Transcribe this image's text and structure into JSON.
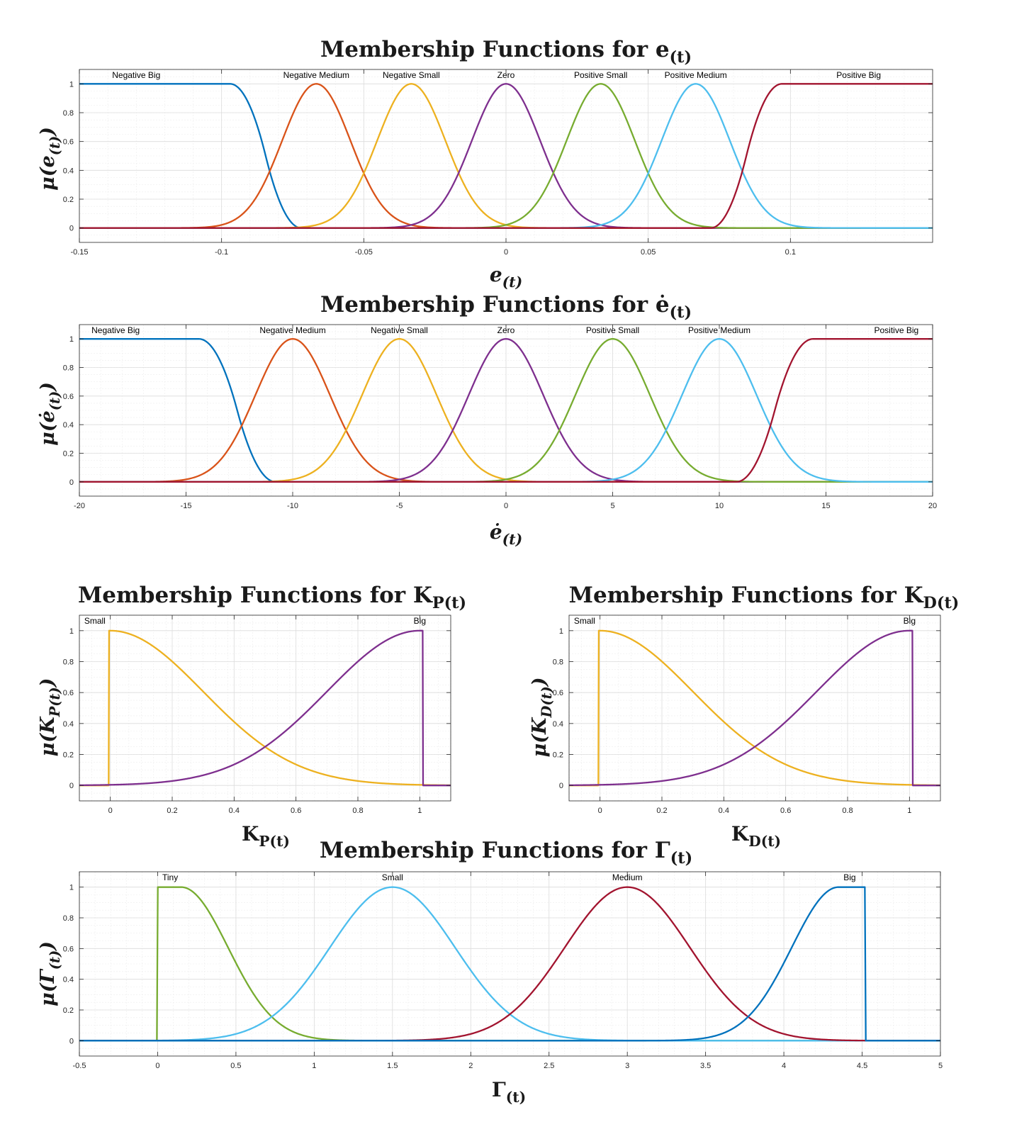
{
  "chart_data": [
    {
      "type": "line",
      "title": "Membership Functions for e(t)",
      "xlabel": "e(t)",
      "ylabel": "μ(e(t))",
      "xlim": [
        -0.15,
        0.15
      ],
      "ylim": [
        -0.1,
        1.1
      ],
      "xticks": [
        -0.15,
        -0.1,
        -0.05,
        0,
        0.05,
        0.1
      ],
      "xtick_labels": [
        "-0.15",
        "-0.1",
        "-0.05",
        "0",
        "0.05",
        "0.1"
      ],
      "yticks": [
        0,
        0.2,
        0.4,
        0.6,
        0.8,
        1
      ],
      "ytick_labels": [
        "0",
        "0.2",
        "0.4",
        "0.6",
        "0.8",
        "1"
      ],
      "grid": true,
      "series": [
        {
          "name": "Negative Big",
          "color": "#0072BD",
          "shape": "zmf",
          "params": [
            -0.097,
            -0.072
          ],
          "label_x": -0.13
        },
        {
          "name": "Negative Medium",
          "color": "#D95319",
          "shape": "gauss",
          "params": [
            -0.0667,
            0.012
          ],
          "label_x": -0.0667
        },
        {
          "name": "Negative Small",
          "color": "#EDB120",
          "shape": "gauss",
          "params": [
            -0.0333,
            0.012
          ],
          "label_x": -0.0333
        },
        {
          "name": "Zero",
          "color": "#7E2F8E",
          "shape": "gauss",
          "params": [
            0,
            0.012
          ],
          "label_x": 0
        },
        {
          "name": "Positive Small",
          "color": "#77AC30",
          "shape": "gauss",
          "params": [
            0.0333,
            0.012
          ],
          "label_x": 0.0333
        },
        {
          "name": "Positive Medium",
          "color": "#4DBEEE",
          "shape": "gauss",
          "params": [
            0.0667,
            0.012
          ],
          "label_x": 0.0667
        },
        {
          "name": "Positive Big",
          "color": "#A2142F",
          "shape": "smf",
          "params": [
            0.072,
            0.097
          ],
          "label_x": 0.124
        }
      ]
    },
    {
      "type": "line",
      "title": "Membership Functions for ė(t)",
      "xlabel": "ė(t)",
      "ylabel": "μ(ė(t))",
      "xlim": [
        -20,
        20
      ],
      "ylim": [
        -0.1,
        1.1
      ],
      "xticks": [
        -20,
        -15,
        -10,
        -5,
        0,
        5,
        10,
        15,
        20
      ],
      "xtick_labels": [
        "-20",
        "-15",
        "-10",
        "-5",
        "0",
        "5",
        "10",
        "15",
        "20"
      ],
      "yticks": [
        0,
        0.2,
        0.4,
        0.6,
        0.8,
        1
      ],
      "ytick_labels": [
        "0",
        "0.2",
        "0.4",
        "0.6",
        "0.8",
        "1"
      ],
      "grid": true,
      "series": [
        {
          "name": "Negative Big",
          "color": "#0072BD",
          "shape": "zmf",
          "params": [
            -14.4,
            -10.8
          ],
          "label_x": -18.3
        },
        {
          "name": "Negative Medium",
          "color": "#D95319",
          "shape": "gauss",
          "params": [
            -10,
            1.75
          ],
          "label_x": -10
        },
        {
          "name": "Negative Small",
          "color": "#EDB120",
          "shape": "gauss",
          "params": [
            -5,
            1.75
          ],
          "label_x": -5
        },
        {
          "name": "Zero",
          "color": "#7E2F8E",
          "shape": "gauss",
          "params": [
            0,
            1.75
          ],
          "label_x": 0
        },
        {
          "name": "Positive Small",
          "color": "#77AC30",
          "shape": "gauss",
          "params": [
            5,
            1.75
          ],
          "label_x": 5
        },
        {
          "name": "Positive Medium",
          "color": "#4DBEEE",
          "shape": "gauss",
          "params": [
            10,
            1.75
          ],
          "label_x": 10
        },
        {
          "name": "Positive Big",
          "color": "#A2142F",
          "shape": "smf",
          "params": [
            10.8,
            14.4
          ],
          "label_x": 18.3
        }
      ]
    },
    {
      "type": "line",
      "title": "Membership Functions for KP(t)",
      "xlabel": "KP(t)",
      "ylabel": "μ(KP(t))",
      "xlim": [
        -0.1,
        1.1
      ],
      "ylim": [
        -0.1,
        1.1
      ],
      "xticks": [
        0,
        0.2,
        0.4,
        0.6,
        0.8,
        1
      ],
      "xtick_labels": [
        "0",
        "0.2",
        "0.4",
        "0.6",
        "0.8",
        "1"
      ],
      "yticks": [
        0,
        0.2,
        0.4,
        0.6,
        0.8,
        1
      ],
      "ytick_labels": [
        "0",
        "0.2",
        "0.4",
        "0.6",
        "0.8",
        "1"
      ],
      "grid": true,
      "series": [
        {
          "name": "Small",
          "color": "#EDB120",
          "shape": "gauss_right",
          "params": [
            0,
            0.3,
            -0.005
          ],
          "label_x": -0.05
        },
        {
          "name": "Big",
          "color": "#7E2F8E",
          "shape": "gauss_left",
          "params": [
            1,
            0.3,
            1.01
          ],
          "label_x": 1.0
        }
      ]
    },
    {
      "type": "line",
      "title": "Membership Functions for KD(t)",
      "xlabel": "KD(t)",
      "ylabel": "μ(KD(t))",
      "xlim": [
        -0.1,
        1.1
      ],
      "ylim": [
        -0.1,
        1.1
      ],
      "xticks": [
        0,
        0.2,
        0.4,
        0.6,
        0.8,
        1
      ],
      "xtick_labels": [
        "0",
        "0.2",
        "0.4",
        "0.6",
        "0.8",
        "1"
      ],
      "yticks": [
        0,
        0.2,
        0.4,
        0.6,
        0.8,
        1
      ],
      "ytick_labels": [
        "0",
        "0.2",
        "0.4",
        "0.6",
        "0.8",
        "1"
      ],
      "grid": true,
      "series": [
        {
          "name": "Small",
          "color": "#EDB120",
          "shape": "gauss_right",
          "params": [
            0,
            0.3,
            -0.005
          ],
          "label_x": -0.05
        },
        {
          "name": "Big",
          "color": "#7E2F8E",
          "shape": "gauss_left",
          "params": [
            1,
            0.3,
            1.01
          ],
          "label_x": 1.0
        }
      ]
    },
    {
      "type": "line",
      "title": "Membership Functions for Γ(t)",
      "xlabel": "Γ(t)",
      "ylabel": "μ(Γ(t))",
      "xlim": [
        -0.5,
        5
      ],
      "ylim": [
        -0.1,
        1.1
      ],
      "xticks": [
        -0.5,
        0,
        0.5,
        1,
        1.5,
        2,
        2.5,
        3,
        3.5,
        4,
        4.5,
        5
      ],
      "xtick_labels": [
        "-0.5",
        "0",
        "0.5",
        "1",
        "1.5",
        "2",
        "2.5",
        "3",
        "3.5",
        "4",
        "4.5",
        "5"
      ],
      "yticks": [
        0,
        0.2,
        0.4,
        0.6,
        0.8,
        1
      ],
      "ytick_labels": [
        "0",
        "0.2",
        "0.4",
        "0.6",
        "0.8",
        "1"
      ],
      "grid": true,
      "series": [
        {
          "name": "Tiny",
          "color": "#77AC30",
          "shape": "gauss2_cut",
          "params": [
            0.02,
            0.15,
            0.3,
            0
          ],
          "label_x": 0.08
        },
        {
          "name": "Small",
          "color": "#4DBEEE",
          "shape": "gauss",
          "params": [
            1.5,
            0.4
          ],
          "label_x": 1.5
        },
        {
          "name": "Medium",
          "color": "#A2142F",
          "shape": "gauss",
          "params": [
            3,
            0.4
          ],
          "label_x": 3
        },
        {
          "name": "Big",
          "color": "#0072BD",
          "shape": "gauss2_cutright",
          "params": [
            4.35,
            4.5,
            0.3,
            4.52
          ],
          "label_x": 4.42
        }
      ]
    }
  ]
}
